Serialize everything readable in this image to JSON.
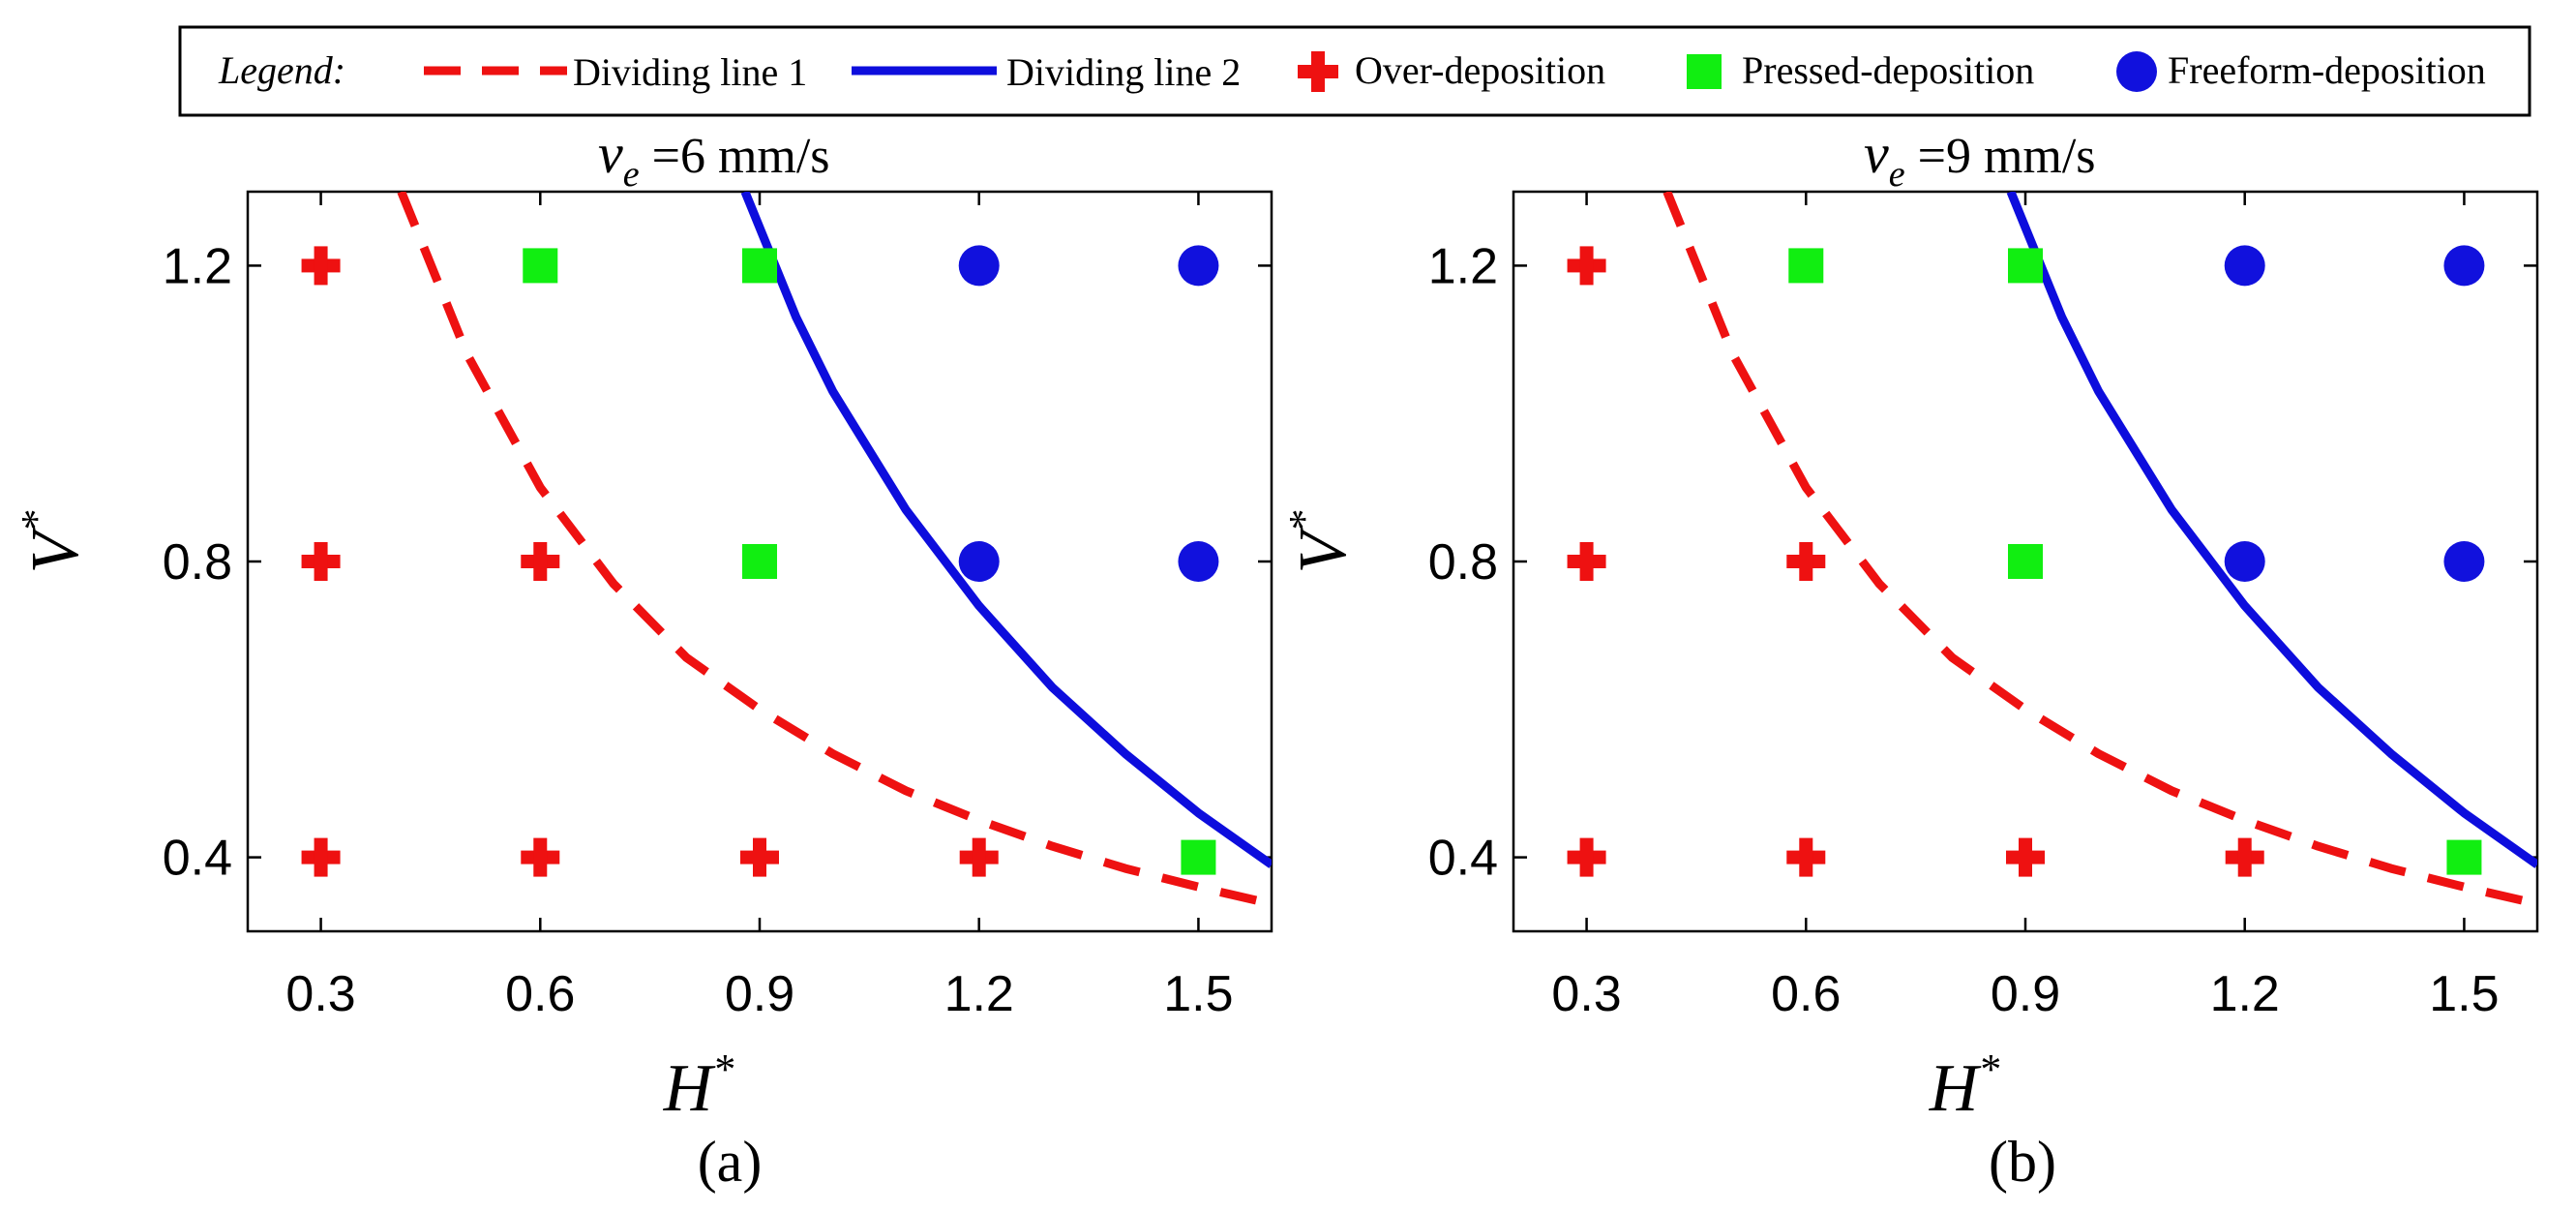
{
  "legend": {
    "title": "Legend:",
    "items": [
      {
        "label": "Dividing line 1",
        "kind": "dashed-line",
        "color": "#ee1111"
      },
      {
        "label": "Dividing line 2",
        "kind": "solid-line",
        "color": "#0d0ddd"
      },
      {
        "label": "Over-deposition",
        "kind": "plus-marker",
        "color": "#ee1111"
      },
      {
        "label": "Pressed-deposition",
        "kind": "square-marker",
        "color": "#11ee11"
      },
      {
        "label": "Freeform-deposition",
        "kind": "circle-marker",
        "color": "#1111dd"
      }
    ]
  },
  "chart_data": [
    {
      "type": "scatter",
      "panel_label": "(a)",
      "title": {
        "symbol": "v",
        "subscript": "e",
        "text": " =6 mm/s"
      },
      "xlabel": {
        "symbol": "H",
        "superscript": "*"
      },
      "ylabel": {
        "symbol": "V",
        "superscript": "*"
      },
      "xlim": [
        0.2,
        1.6
      ],
      "ylim": [
        0.3,
        1.3
      ],
      "xticks": [
        0.3,
        0.6,
        0.9,
        1.2,
        1.5
      ],
      "xtick_labels": [
        "0.3",
        "0.6",
        "0.9",
        "1.2",
        "1.5"
      ],
      "yticks": [
        0.4,
        0.8,
        1.2
      ],
      "ytick_labels": [
        "0.4",
        "0.8",
        "1.2"
      ],
      "series": [
        {
          "name": "Over-deposition",
          "marker": "plus",
          "points": [
            [
              0.3,
              1.2
            ],
            [
              0.3,
              0.8
            ],
            [
              0.6,
              0.8
            ],
            [
              0.3,
              0.4
            ],
            [
              0.6,
              0.4
            ],
            [
              0.9,
              0.4
            ],
            [
              1.2,
              0.4
            ]
          ]
        },
        {
          "name": "Pressed-deposition",
          "marker": "square",
          "points": [
            [
              0.6,
              1.2
            ],
            [
              0.9,
              1.2
            ],
            [
              0.9,
              0.8
            ],
            [
              1.5,
              0.4
            ]
          ]
        },
        {
          "name": "Freeform-deposition",
          "marker": "circle",
          "points": [
            [
              1.2,
              1.2
            ],
            [
              1.5,
              1.2
            ],
            [
              1.2,
              0.8
            ],
            [
              1.5,
              0.8
            ]
          ]
        }
      ],
      "curves": [
        {
          "name": "Dividing line 1",
          "style": "dashed",
          "points": [
            [
              0.41,
              1.3
            ],
            [
              0.5,
              1.08
            ],
            [
              0.6,
              0.9
            ],
            [
              0.7,
              0.77
            ],
            [
              0.8,
              0.67
            ],
            [
              0.9,
              0.6
            ],
            [
              1.0,
              0.54
            ],
            [
              1.1,
              0.49
            ],
            [
              1.2,
              0.45
            ],
            [
              1.3,
              0.415
            ],
            [
              1.4,
              0.385
            ],
            [
              1.5,
              0.36
            ],
            [
              1.6,
              0.337
            ]
          ]
        },
        {
          "name": "Dividing line 2",
          "style": "solid",
          "points": [
            [
              0.88,
              1.3
            ],
            [
              0.95,
              1.13
            ],
            [
              1.0,
              1.03
            ],
            [
              1.1,
              0.87
            ],
            [
              1.2,
              0.74
            ],
            [
              1.3,
              0.63
            ],
            [
              1.4,
              0.54
            ],
            [
              1.5,
              0.46
            ],
            [
              1.6,
              0.39
            ]
          ]
        }
      ]
    },
    {
      "type": "scatter",
      "panel_label": "(b)",
      "title": {
        "symbol": "v",
        "subscript": "e",
        "text": " =9 mm/s"
      },
      "xlabel": {
        "symbol": "H",
        "superscript": "*"
      },
      "ylabel": {
        "symbol": "V",
        "superscript": "*"
      },
      "xlim": [
        0.2,
        1.6
      ],
      "ylim": [
        0.3,
        1.3
      ],
      "xticks": [
        0.3,
        0.6,
        0.9,
        1.2,
        1.5
      ],
      "xtick_labels": [
        "0.3",
        "0.6",
        "0.9",
        "1.2",
        "1.5"
      ],
      "yticks": [
        0.4,
        0.8,
        1.2
      ],
      "ytick_labels": [
        "0.4",
        "0.8",
        "1.2"
      ],
      "series": [
        {
          "name": "Over-deposition",
          "marker": "plus",
          "points": [
            [
              0.3,
              1.2
            ],
            [
              0.3,
              0.8
            ],
            [
              0.6,
              0.8
            ],
            [
              0.3,
              0.4
            ],
            [
              0.6,
              0.4
            ],
            [
              0.9,
              0.4
            ],
            [
              1.2,
              0.4
            ]
          ]
        },
        {
          "name": "Pressed-deposition",
          "marker": "square",
          "points": [
            [
              0.6,
              1.2
            ],
            [
              0.9,
              1.2
            ],
            [
              0.9,
              0.8
            ],
            [
              1.5,
              0.4
            ]
          ]
        },
        {
          "name": "Freeform-deposition",
          "marker": "circle",
          "points": [
            [
              1.2,
              1.2
            ],
            [
              1.5,
              1.2
            ],
            [
              1.2,
              0.8
            ],
            [
              1.5,
              0.8
            ]
          ]
        }
      ],
      "curves": [
        {
          "name": "Dividing line 1",
          "style": "dashed",
          "points": [
            [
              0.41,
              1.3
            ],
            [
              0.5,
              1.08
            ],
            [
              0.6,
              0.9
            ],
            [
              0.7,
              0.77
            ],
            [
              0.8,
              0.67
            ],
            [
              0.9,
              0.6
            ],
            [
              1.0,
              0.54
            ],
            [
              1.1,
              0.49
            ],
            [
              1.2,
              0.45
            ],
            [
              1.3,
              0.415
            ],
            [
              1.4,
              0.385
            ],
            [
              1.5,
              0.36
            ],
            [
              1.6,
              0.337
            ]
          ]
        },
        {
          "name": "Dividing line 2",
          "style": "solid",
          "points": [
            [
              0.88,
              1.3
            ],
            [
              0.95,
              1.13
            ],
            [
              1.0,
              1.03
            ],
            [
              1.1,
              0.87
            ],
            [
              1.2,
              0.74
            ],
            [
              1.3,
              0.63
            ],
            [
              1.4,
              0.54
            ],
            [
              1.5,
              0.46
            ],
            [
              1.6,
              0.39
            ]
          ]
        }
      ]
    }
  ]
}
